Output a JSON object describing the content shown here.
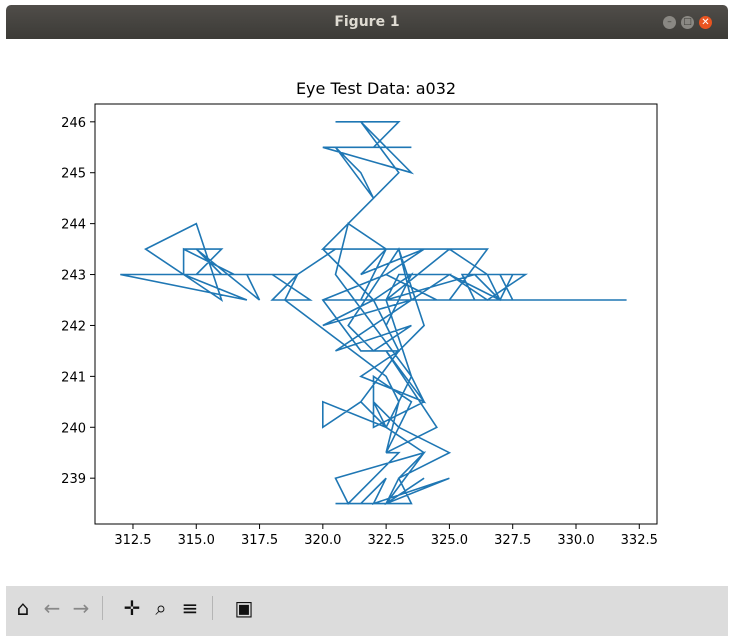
{
  "window": {
    "title": "Figure 1"
  },
  "toolbar": {
    "buttons": [
      {
        "name": "home-icon",
        "glyph": "⌂",
        "enabled": true
      },
      {
        "name": "back-icon",
        "glyph": "←",
        "enabled": false
      },
      {
        "name": "forward-icon",
        "glyph": "→",
        "enabled": false
      },
      {
        "name": "pan-icon",
        "glyph": "✛",
        "enabled": true
      },
      {
        "name": "zoom-icon",
        "glyph": "⌕",
        "enabled": true
      },
      {
        "name": "configure-subplots-icon",
        "glyph": "≡",
        "enabled": true
      },
      {
        "name": "save-icon",
        "glyph": "▣",
        "enabled": true
      }
    ]
  },
  "chart_data": {
    "type": "line",
    "title": "Eye Test Data: a032",
    "xlabel": "",
    "ylabel": "",
    "xlim": [
      311,
      333.2
    ],
    "ylim": [
      238.1,
      246.35
    ],
    "xticks": [
      "312.5",
      "315.0",
      "317.5",
      "320.0",
      "322.5",
      "325.0",
      "327.5",
      "330.0",
      "332.5"
    ],
    "xtick_values": [
      312.5,
      315,
      317.5,
      320,
      322.5,
      325,
      327.5,
      330,
      332.5
    ],
    "yticks": [
      "239",
      "240",
      "241",
      "242",
      "243",
      "244",
      "245",
      "246"
    ],
    "ytick_values": [
      239,
      240,
      241,
      242,
      243,
      244,
      245,
      246
    ],
    "grid": false,
    "color": "#1f77b4",
    "series": [
      {
        "x": [
          320.5,
          323,
          322,
          323.5,
          320,
          323.5,
          321.5,
          323,
          322,
          320.5,
          321.5,
          322,
          320,
          322.5,
          321.5,
          323.5,
          323,
          321,
          322,
          323.5,
          320.5,
          323.5,
          320,
          322,
          323,
          321.5,
          320,
          322.5,
          320,
          322,
          320,
          321,
          322,
          323.5,
          322.5,
          323,
          321.5,
          322.5,
          322,
          323,
          322.5,
          323,
          322.5,
          320,
          320,
          321.5,
          322.5,
          323,
          322.5,
          318.5,
          319,
          317,
          317.5,
          315,
          316,
          315,
          316,
          314.5,
          316.5,
          314.5,
          314.5,
          316,
          315,
          313,
          314.5,
          317,
          312,
          318,
          319.5,
          318,
          319,
          320.5,
          322.5,
          321.5,
          324,
          322.5,
          324.5,
          322.5,
          325,
          326.5,
          325,
          326,
          325.5,
          327.5,
          327,
          325,
          326.5,
          328,
          327,
          327.5,
          322.5,
          332,
          322.5,
          326,
          327,
          326.5,
          325,
          322.5,
          321,
          320.5,
          322,
          323.5,
          322.5,
          322.5,
          323,
          325,
          323.5,
          323,
          324,
          323,
          321.5,
          324,
          322.5,
          324.5,
          322.5,
          323,
          321,
          320.5,
          324,
          322.5,
          323.5,
          323,
          325,
          323,
          323.5,
          322,
          322,
          324,
          323.5,
          322.5,
          324,
          323,
          322.5,
          325,
          322,
          322.5,
          321.5,
          320.5,
          322.5,
          324
        ],
        "y": [
          246,
          246,
          245.5,
          245.5,
          245.5,
          245,
          246,
          245,
          244.5,
          245.5,
          245,
          244.5,
          243.5,
          243.5,
          242.5,
          242.5,
          243.5,
          242,
          241.5,
          242,
          241.5,
          242.5,
          242,
          242.5,
          241.5,
          241.5,
          242.5,
          243,
          242.5,
          242.5,
          243.5,
          243,
          242.5,
          243,
          242,
          241.5,
          240.5,
          240,
          240.5,
          240,
          239.5,
          240.5,
          240,
          240.5,
          240,
          240.5,
          240,
          240.5,
          241,
          242.5,
          243,
          243,
          242.5,
          243.5,
          243,
          243,
          243.5,
          243.5,
          243,
          243.5,
          243,
          242.5,
          244,
          243.5,
          243,
          242.5,
          243,
          243,
          242.5,
          242.5,
          243,
          243.5,
          243.5,
          243,
          243.5,
          243,
          242.5,
          242.5,
          243.5,
          243.5,
          242.5,
          242.5,
          243,
          243,
          242.5,
          243,
          242.5,
          243,
          243,
          242.5,
          242.5,
          242.5,
          242.5,
          243,
          242.5,
          243,
          243.5,
          243.5,
          244,
          243,
          242,
          241,
          242.5,
          242.5,
          243,
          243,
          242.5,
          243.5,
          242,
          241.5,
          241,
          240.5,
          241.5,
          240,
          239.5,
          239.5,
          238.5,
          239,
          239.5,
          238.5,
          238.5,
          239,
          239.5,
          240,
          240.5,
          241,
          240,
          240.5,
          241,
          240,
          239.5,
          239,
          238.5,
          239,
          238.5,
          239,
          238.5,
          238.5,
          238.5,
          239
        ]
      }
    ]
  }
}
